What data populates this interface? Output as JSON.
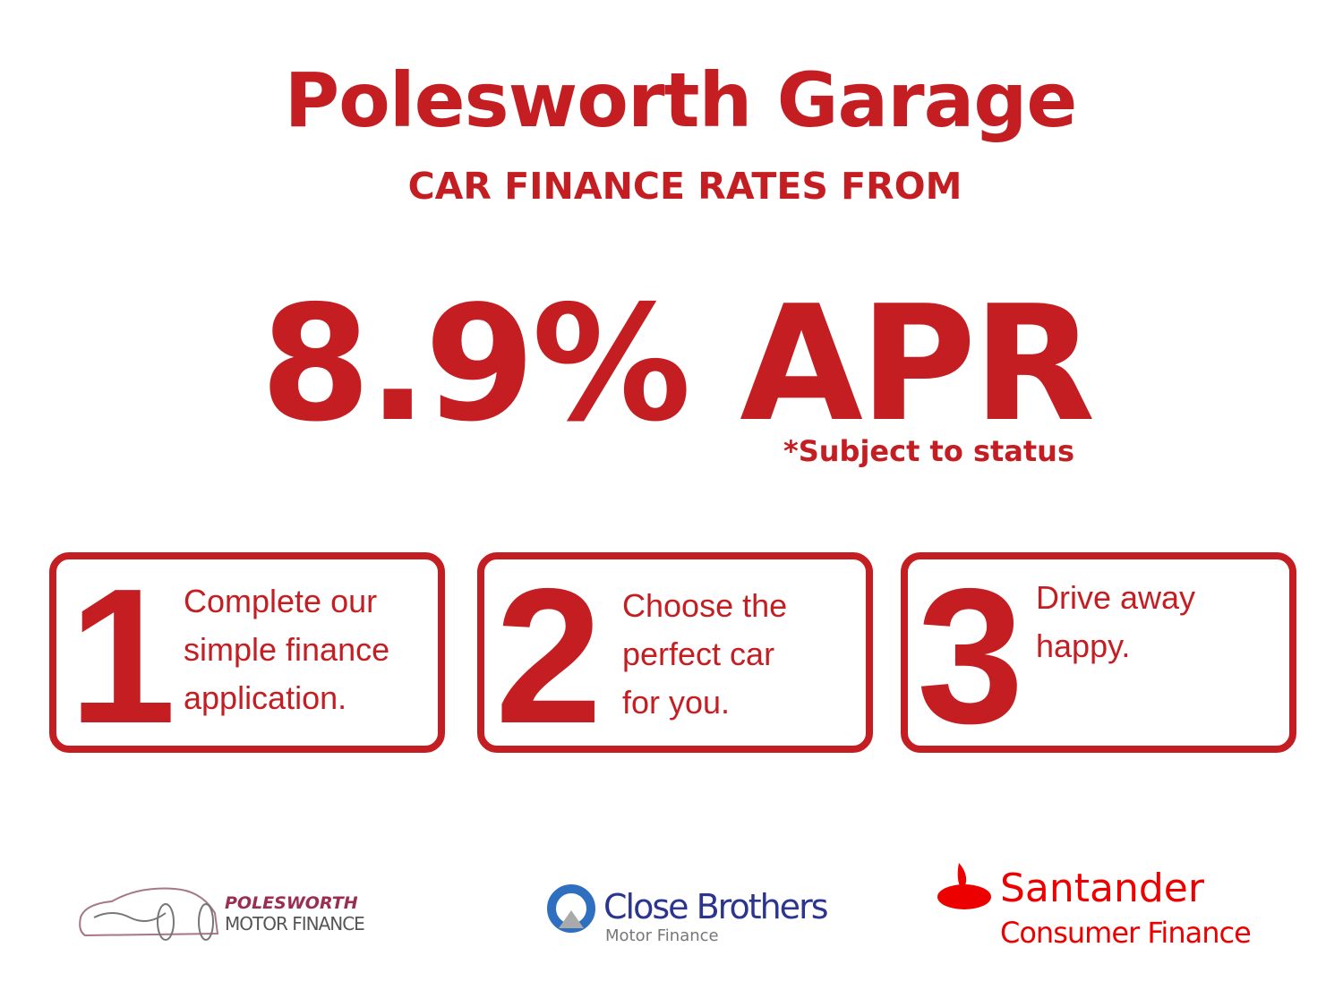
{
  "header": {
    "title": "Polesworth Garage",
    "subtitle": "CAR FINANCE RATES FROM"
  },
  "offer": {
    "rate": "8.9% APR",
    "note": "*Subject to status"
  },
  "steps": [
    {
      "number": "1",
      "lines": [
        "Complete our",
        "simple finance",
        "application."
      ]
    },
    {
      "number": "2",
      "lines": [
        "Choose the",
        "perfect car",
        "for you."
      ]
    },
    {
      "number": "3",
      "lines": [
        "Drive away",
        "happy."
      ]
    }
  ],
  "logos": {
    "polesworth": {
      "line1": "POLESWORTH",
      "line2": "MOTOR FINANCE"
    },
    "close_brothers": {
      "line1": "Close Brothers",
      "line2": "Motor Finance"
    },
    "santander": {
      "line1": "Santander",
      "line2": "Consumer Finance"
    }
  },
  "colors": {
    "brand_red": "#c41e22",
    "close_blue": "#2b3590",
    "santander_red": "#ec0000"
  }
}
